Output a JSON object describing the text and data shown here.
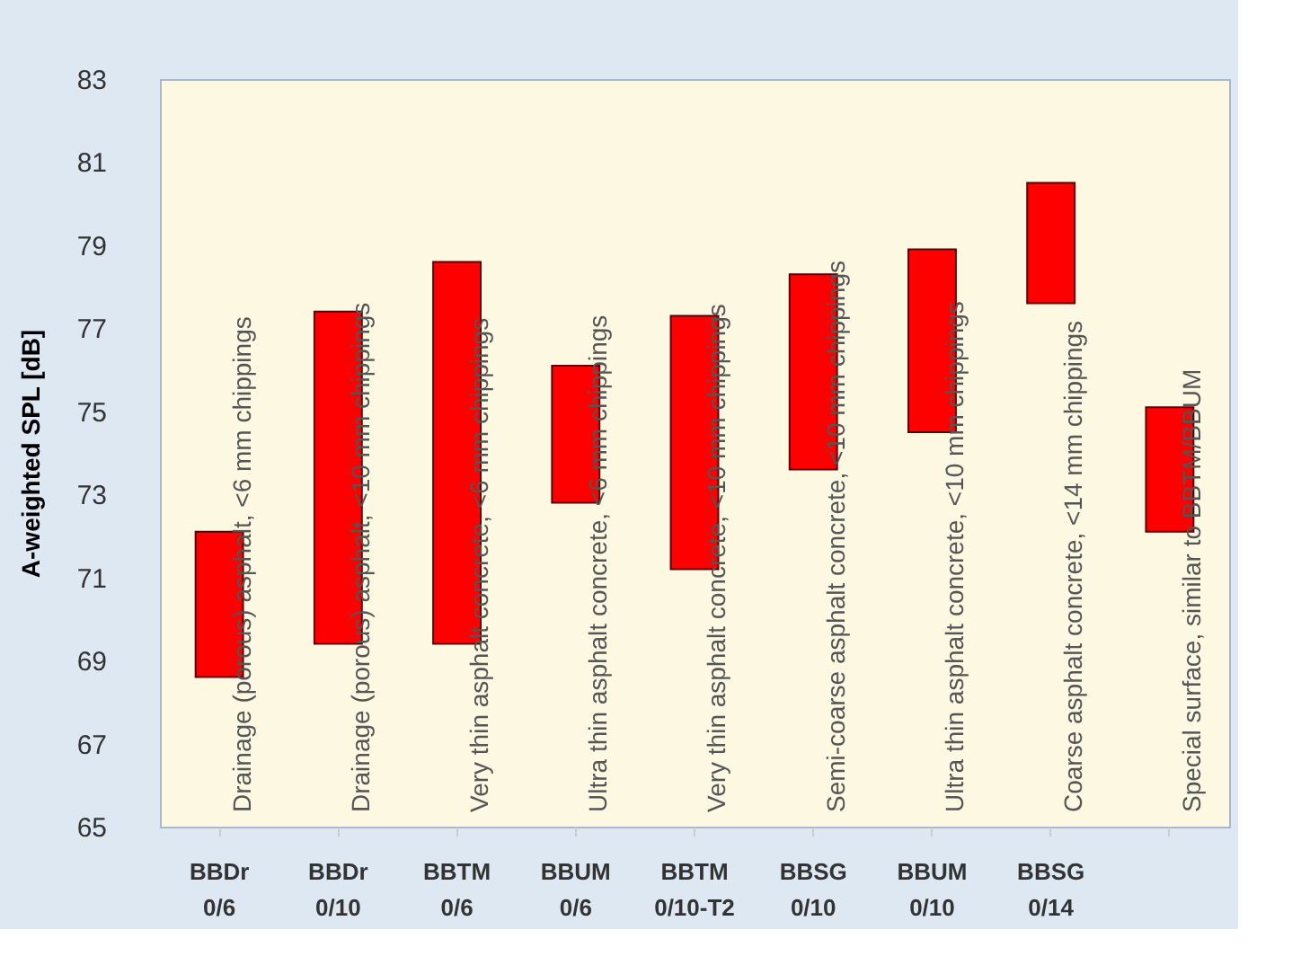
{
  "chart_data": {
    "type": "bar",
    "ylabel": "A-weighted SPL [dB]",
    "categories": [
      "BBDr 0/6",
      "BBDr 0/10",
      "BBTM 0/6",
      "BBUM 0/6",
      "BBTM 0/10-T2",
      "BBSG 0/10",
      "BBUM 0/10",
      "BBSG 0/14",
      null
    ],
    "base": [
      68.6,
      69.4,
      69.4,
      72.8,
      71.2,
      73.6,
      74.5,
      77.6,
      72.1
    ],
    "values": [
      3.5,
      8.0,
      9.2,
      3.3,
      6.1,
      4.7,
      4.4,
      2.9,
      3.0
    ],
    "color": "#ff0000",
    "ylim": [
      65,
      83
    ],
    "yticks": [
      65,
      67,
      69,
      71,
      73,
      75,
      77,
      79,
      81,
      83
    ],
    "grid": false,
    "annotations": [
      "Drainage (porous) asphalt, <6 mm chippings",
      "Drainage (porous) asphalt, <10 mm chippings",
      "Very thin asphalt concrete, <6 mm chippings",
      "Ultra thin asphalt concrete, <6 mm chippings",
      "Very thin asphalt concrete, <10 mm chippings",
      "Semi-coarse asphalt concrete, <10 mm chippings",
      "Ultra thin asphalt concrete, <10 mm chippings",
      "Coarse asphalt concrete, <14 mm chippings",
      "Special surface, similar to BBTM/BBUM"
    ]
  }
}
